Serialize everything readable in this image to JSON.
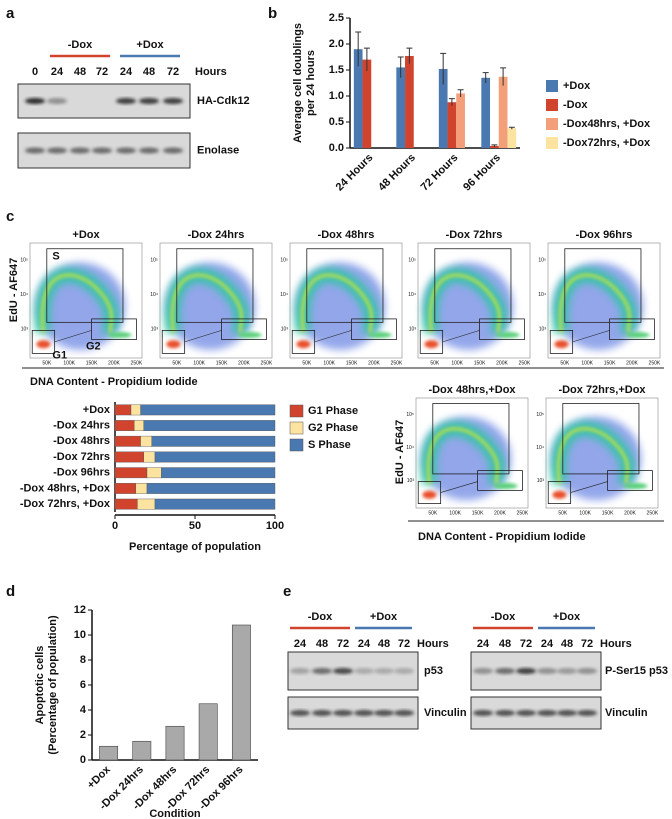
{
  "panel_labels": [
    "a",
    "b",
    "c",
    "d",
    "e"
  ],
  "blot_a": {
    "groups": [
      "-Dox",
      "+Dox"
    ],
    "lanes": [
      "0",
      "24",
      "48",
      "72",
      "24",
      "48",
      "72"
    ],
    "lanes_unit": "Hours",
    "bands": [
      "HA-Cdk12",
      "Enolase"
    ]
  },
  "flow": {
    "top_titles": [
      "+Dox",
      "-Dox 24hrs",
      "-Dox 48hrs",
      "-Dox 72hrs",
      "-Dox 96hrs"
    ],
    "bottom_titles": [
      "-Dox 48hrs,+Dox",
      "-Dox 72hrs,+Dox"
    ],
    "ylabel": "EdU - AF647",
    "xlabel": "DNA Content - Propidium Iodide",
    "gates": [
      "S",
      "G1",
      "G2"
    ],
    "yticks": [
      "10³",
      "10⁴",
      "10⁵"
    ],
    "xticks": [
      "50K",
      "100K",
      "150K",
      "200K",
      "250K"
    ]
  },
  "chart_data": [
    {
      "type": "bar",
      "ylabel": [
        "Average cell doublings",
        "per 24 hours"
      ],
      "categories": [
        "24 Hours",
        "48 Hours",
        "72 Hours",
        "96 Hours"
      ],
      "series": [
        {
          "name": "+Dox",
          "color": "#4a78b0",
          "values": [
            1.9,
            1.55,
            1.52,
            1.35
          ],
          "errors": [
            0.33,
            0.2,
            0.3,
            0.1
          ]
        },
        {
          "name": "-Dox",
          "color": "#d0442e",
          "values": [
            1.7,
            1.77,
            0.88,
            0.04
          ],
          "errors": [
            0.22,
            0.15,
            0.07,
            0.02
          ]
        },
        {
          "name": "-Dox48hrs, +Dox",
          "color": "#f3a07a",
          "values": [
            null,
            null,
            1.05,
            1.37
          ],
          "errors": [
            null,
            null,
            0.07,
            0.17
          ]
        },
        {
          "name": "-Dox72hrs, +Dox",
          "color": "#fde3a0",
          "values": [
            null,
            null,
            null,
            0.38
          ],
          "errors": [
            null,
            null,
            null,
            0.02
          ]
        }
      ],
      "ylim": [
        0,
        2.5
      ],
      "yticks": [
        {
          "value": 0,
          "label": "0.0"
        },
        0.5,
        {
          "value": 1,
          "label": "1.0"
        },
        1.5,
        {
          "value": 2,
          "label": "2.0"
        },
        2.5
      ],
      "legend": "right"
    },
    {
      "type": "bar",
      "orientation": "horizontal",
      "stacked": true,
      "xlabel": "Percentage of population",
      "categories": [
        "+Dox",
        "-Dox 24hrs",
        "-Dox 48hrs",
        "-Dox 72hrs",
        "-Dox 96hrs",
        "-Dox 48hrs, +Dox",
        "-Dox 72hrs, +Dox"
      ],
      "series": [
        {
          "name": "G1 Phase",
          "color": "#d0442e",
          "values": [
            10,
            12,
            16,
            18,
            20,
            13,
            14
          ]
        },
        {
          "name": "G2 Phase",
          "color": "#fde3a0",
          "values": [
            6,
            6,
            7,
            7,
            9,
            7,
            11
          ]
        },
        {
          "name": "S Phase",
          "color": "#4a78b0",
          "values": [
            84,
            82,
            77,
            75,
            71,
            80,
            75
          ]
        }
      ],
      "xlim": [
        0,
        100
      ],
      "xticks": [
        0,
        50,
        100
      ],
      "legend": "right"
    },
    {
      "type": "bar",
      "ylabel": [
        "Apoptotic cells",
        "(Percentage of population)"
      ],
      "xlabel": "Condition",
      "categories": [
        "+Dox",
        "-Dox 24hrs",
        "-Dox 48hrs",
        "-Dox 72hrs",
        "-Dox 96hrs"
      ],
      "values": [
        1.1,
        1.5,
        2.7,
        4.5,
        10.8
      ],
      "color": "#a9a9a9",
      "ylim": [
        0,
        12
      ],
      "yticks": [
        0,
        2,
        4,
        6,
        8,
        10,
        12
      ]
    }
  ],
  "blot_e": {
    "groups": [
      "-Dox",
      "+Dox"
    ],
    "lanes": [
      "24",
      "48",
      "72",
      "24",
      "48",
      "72"
    ],
    "lanes_unit": "Hours",
    "left_bands": [
      "p53",
      "Vinculin"
    ],
    "right_bands": [
      "P-Ser15 p53",
      "Vinculin"
    ]
  }
}
